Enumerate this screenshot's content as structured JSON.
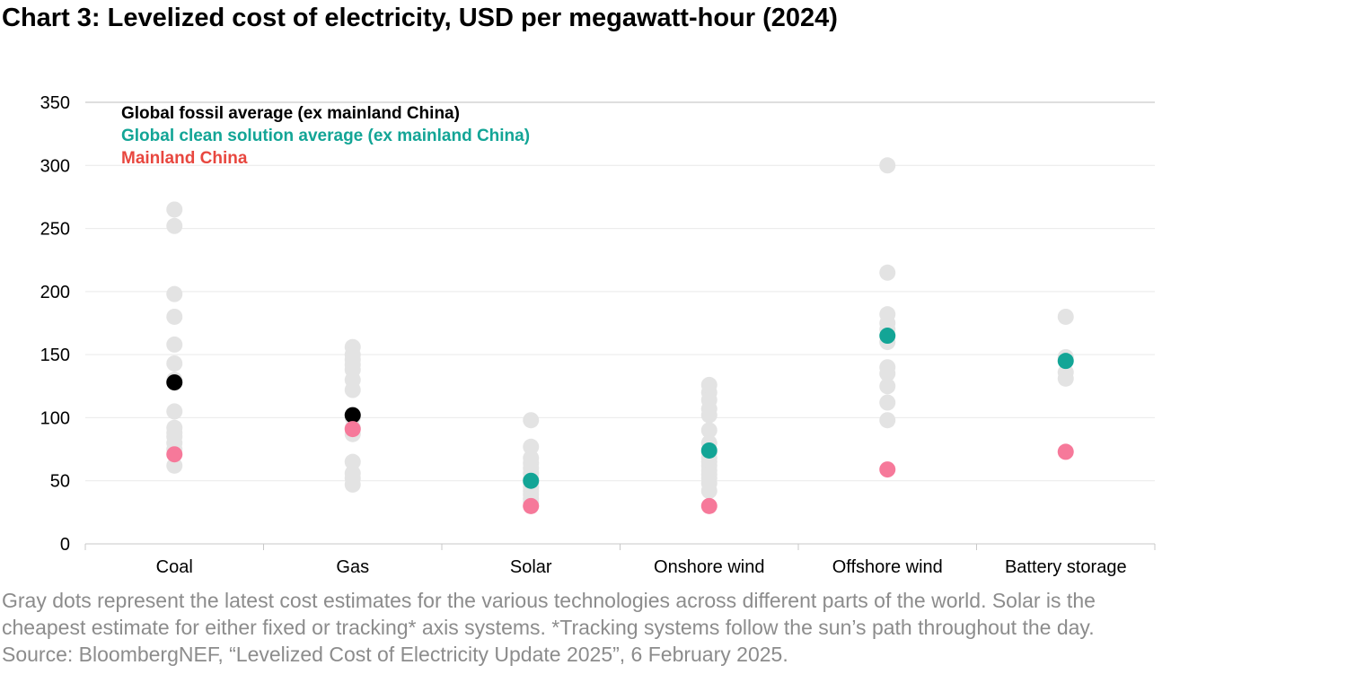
{
  "title": "Chart 3: Levelized cost of electricity, USD per megawatt-hour (2024)",
  "caption": {
    "line1": "Gray dots represent the latest cost estimates for the various technologies across different parts of the world. Solar is the",
    "line2": "cheapest estimate for either fixed or tracking* axis systems. *Tracking systems follow the sun’s path throughout the day.",
    "line3": "Source: BloombergNEF, “Levelized Cost of Electricity Update 2025”, 6 February 2025."
  },
  "colors": {
    "gray_dot": "#e3e3e3",
    "fossil": "#000000",
    "clean": "#13a596",
    "china": "#f6799a",
    "china_label": "#e8473f",
    "axis": "#c8c8c8"
  },
  "chart_data": {
    "type": "scatter",
    "categories": [
      "Coal",
      "Gas",
      "Solar",
      "Onshore wind",
      "Offshore wind",
      "Battery storage"
    ],
    "ylim": [
      0,
      350
    ],
    "yticks": [
      0,
      50,
      100,
      150,
      200,
      250,
      300,
      350
    ],
    "grid": true,
    "legend_position": "top-left",
    "legend": [
      {
        "key": "fossil",
        "label": "Global fossil average (ex mainland China)"
      },
      {
        "key": "clean",
        "label": "Global clean solution average (ex mainland China)"
      },
      {
        "key": "china",
        "label": "Mainland China"
      }
    ],
    "gray_points": [
      [
        265,
        252,
        198,
        180,
        158,
        143,
        130,
        105,
        92,
        88,
        85,
        80,
        75,
        62
      ],
      [
        156,
        150,
        146,
        142,
        138,
        130,
        122,
        100,
        92,
        87,
        65,
        56,
        52,
        47
      ],
      [
        98,
        77,
        68,
        64,
        60,
        56,
        52,
        48,
        45,
        42,
        39,
        36,
        33,
        30
      ],
      [
        126,
        120,
        114,
        107,
        102,
        90,
        80,
        72,
        68,
        65,
        62,
        58,
        55,
        52,
        48,
        42
      ],
      [
        300,
        215,
        182,
        175,
        170,
        160,
        140,
        135,
        125,
        112,
        98
      ],
      [
        180,
        148,
        136,
        131
      ]
    ],
    "series": [
      {
        "name": "Global fossil average (ex mainland China)",
        "key": "fossil",
        "values": [
          128,
          102,
          null,
          null,
          null,
          null
        ]
      },
      {
        "name": "Global clean solution average (ex mainland China)",
        "key": "clean",
        "values": [
          null,
          null,
          50,
          74,
          165,
          145
        ]
      },
      {
        "name": "Mainland China",
        "key": "china",
        "values": [
          71,
          91,
          30,
          30,
          59,
          73
        ]
      }
    ]
  }
}
